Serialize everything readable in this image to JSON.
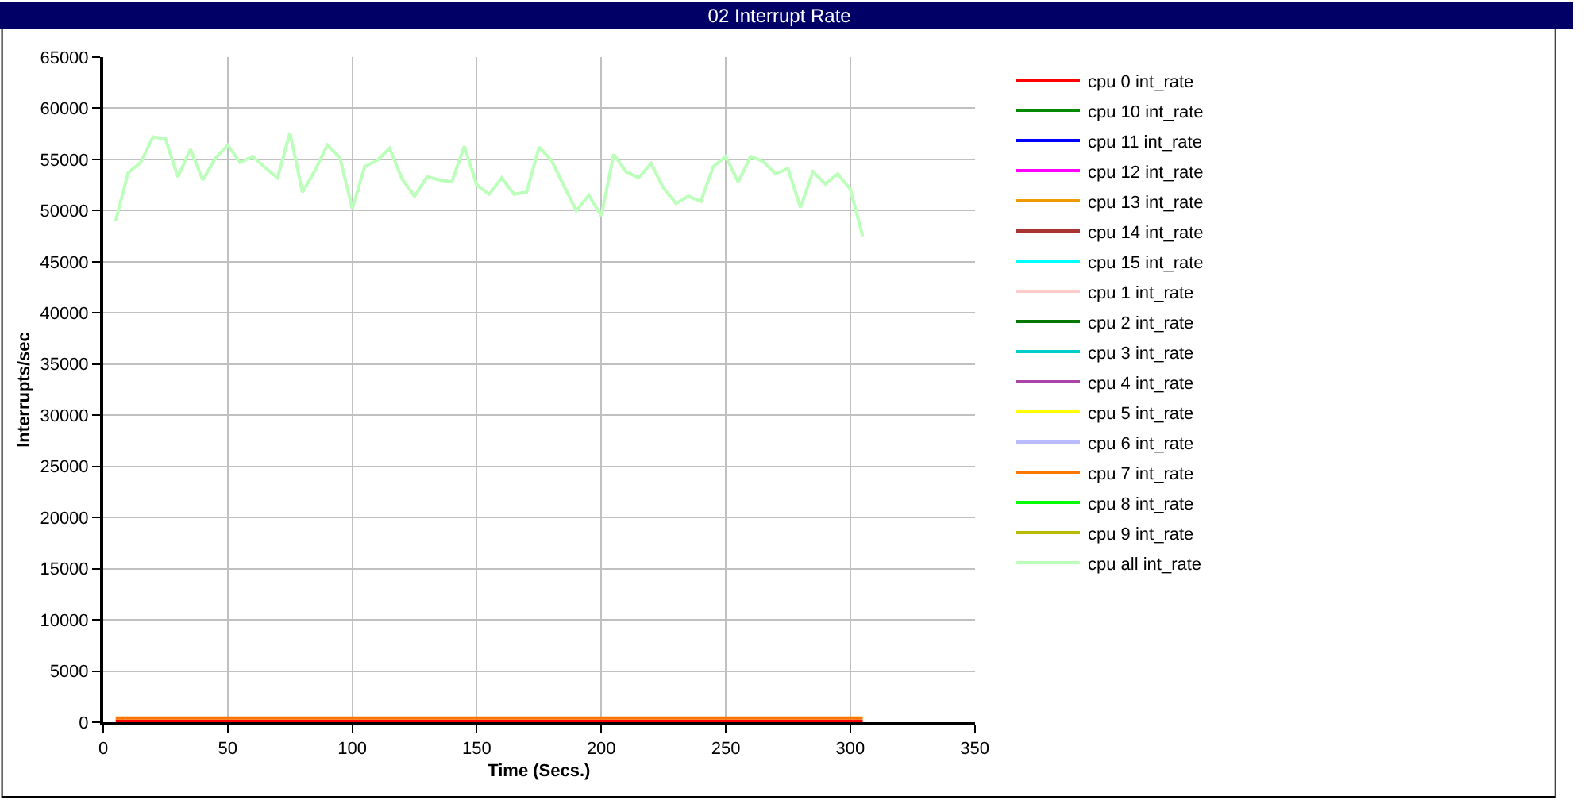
{
  "chart_data": {
    "type": "line",
    "title": "02 Interrupt Rate",
    "xlabel": "Time (Secs.)",
    "ylabel": "Interrupts/sec",
    "xlim": [
      0,
      350
    ],
    "xticks": [
      0,
      50,
      100,
      150,
      200,
      250,
      300,
      350
    ],
    "ylim": [
      0,
      65000
    ],
    "yticks": [
      0,
      5000,
      10000,
      15000,
      20000,
      25000,
      30000,
      35000,
      40000,
      45000,
      50000,
      55000,
      60000,
      65000
    ],
    "grid": true,
    "legend": "right",
    "marker": "none",
    "line_style": "solid",
    "series": [
      {
        "name": "cpu 0 int_rate",
        "color": "#ff0000",
        "x": [
          5,
          305
        ],
        "values": [
          100,
          100
        ]
      },
      {
        "name": "cpu 10 int_rate",
        "color": "#008800"
      },
      {
        "name": "cpu 11 int_rate",
        "color": "#0000ff"
      },
      {
        "name": "cpu 12 int_rate",
        "color": "#ff00ff"
      },
      {
        "name": "cpu 13 int_rate",
        "color": "#ee9900"
      },
      {
        "name": "cpu 14 int_rate",
        "color": "#aa3333"
      },
      {
        "name": "cpu 15 int_rate",
        "color": "#00ffff"
      },
      {
        "name": "cpu 1 int_rate",
        "color": "#ffcccc"
      },
      {
        "name": "cpu 2 int_rate",
        "color": "#007700"
      },
      {
        "name": "cpu 3 int_rate",
        "color": "#00cccc"
      },
      {
        "name": "cpu 4 int_rate",
        "color": "#aa44aa"
      },
      {
        "name": "cpu 5 int_rate",
        "color": "#ffff00"
      },
      {
        "name": "cpu 6 int_rate",
        "color": "#bbbbff"
      },
      {
        "name": "cpu 7 int_rate",
        "color": "#ff7700",
        "x": [
          5,
          305
        ],
        "values": [
          400,
          400
        ]
      },
      {
        "name": "cpu 8 int_rate",
        "color": "#00ff00"
      },
      {
        "name": "cpu 9 int_rate",
        "color": "#bbbb00"
      },
      {
        "name": "cpu all int_rate",
        "color": "#bbffbb",
        "x": [
          5,
          10,
          15,
          20,
          25,
          30,
          35,
          40,
          45,
          50,
          55,
          60,
          65,
          70,
          75,
          80,
          85,
          90,
          95,
          100,
          105,
          110,
          115,
          120,
          125,
          130,
          135,
          140,
          145,
          150,
          155,
          160,
          165,
          170,
          175,
          180,
          185,
          190,
          195,
          200,
          205,
          210,
          215,
          220,
          225,
          230,
          235,
          240,
          245,
          250,
          255,
          260,
          265,
          270,
          275,
          280,
          285,
          290,
          295,
          300,
          305
        ],
        "values": [
          49000,
          53700,
          54700,
          57200,
          57000,
          53300,
          56000,
          53000,
          55100,
          56400,
          54700,
          55300,
          54200,
          53200,
          57600,
          51800,
          53900,
          56400,
          55200,
          50200,
          54300,
          54900,
          56100,
          53100,
          51400,
          53300,
          53000,
          52800,
          56300,
          52500,
          51600,
          53200,
          51600,
          51800,
          56200,
          54900,
          52400,
          50000,
          51500,
          49500,
          55500,
          53800,
          53200,
          54600,
          52200,
          50700,
          51400,
          50900,
          54300,
          55300,
          52800,
          55300,
          54800,
          53600,
          54100,
          50300,
          53800,
          52600,
          53600,
          52100,
          47500
        ]
      }
    ]
  }
}
